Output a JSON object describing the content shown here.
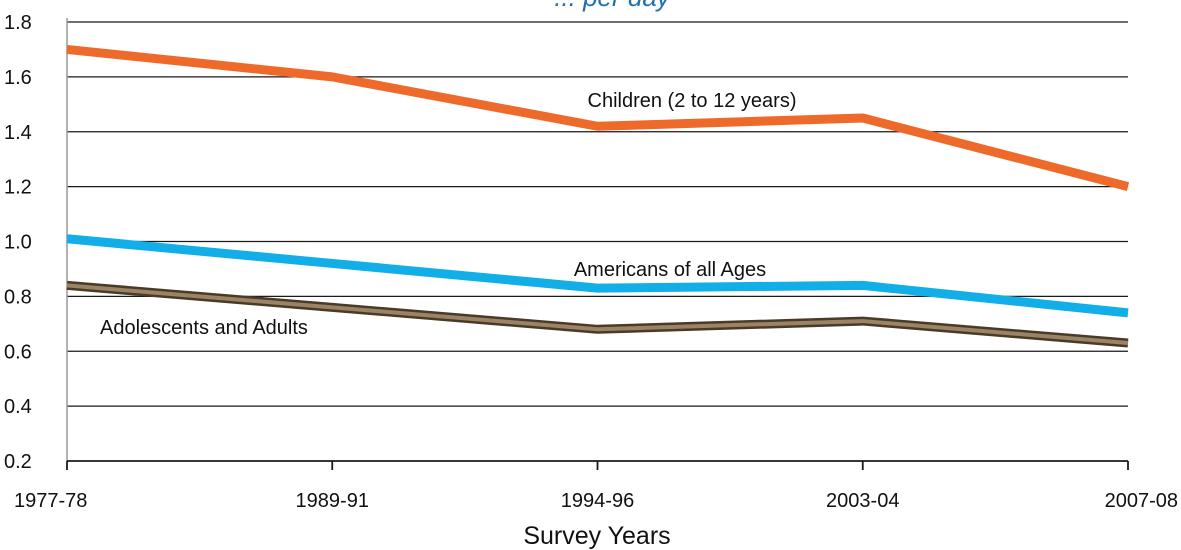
{
  "chart_data": {
    "type": "line",
    "title": "... per day",
    "xlabel": "Survey Years",
    "ylabel": "",
    "categories": [
      "1977-78",
      "1989-91",
      "1994-96",
      "2003-04",
      "2007-08"
    ],
    "ylim": [
      0.2,
      1.8
    ],
    "yticks": [
      "0.2",
      "0.4",
      "0.6",
      "0.8",
      "1.0",
      "1.2",
      "1.4",
      "1.6",
      "1.8"
    ],
    "grid": true,
    "legend": "none",
    "series": [
      {
        "name": "Children (2 to 12 years)",
        "values": [
          1.7,
          1.6,
          1.42,
          1.45,
          1.2
        ],
        "color": "#ee6a2b"
      },
      {
        "name": "Americans of all Ages",
        "values": [
          1.01,
          0.92,
          0.83,
          0.84,
          0.74
        ],
        "color": "#12aee7"
      },
      {
        "name": "Adolescents and Adults",
        "values": [
          0.84,
          0.76,
          0.68,
          0.71,
          0.63
        ],
        "color": "#7a5f43"
      }
    ]
  }
}
